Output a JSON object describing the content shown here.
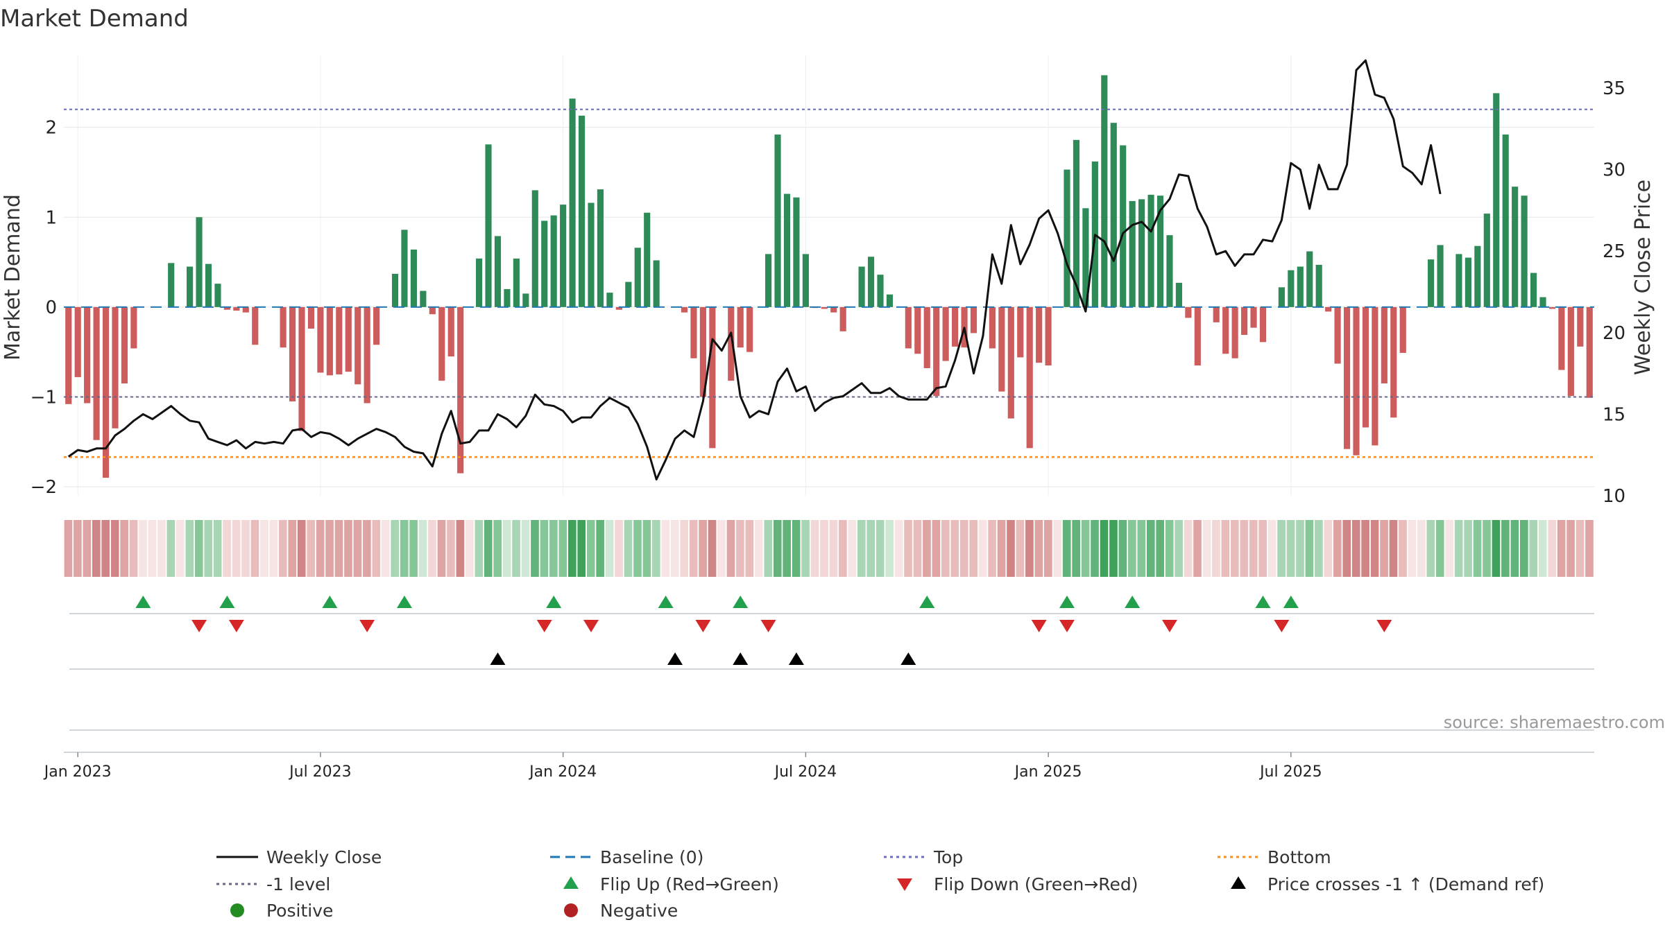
{
  "chart_data": {
    "type": "bar",
    "title": "Market Demand",
    "ylabel_left": "Market Demand",
    "ylabel_right": "Weekly Close Price",
    "ylim_left": [
      -2.1,
      2.8
    ],
    "ylim_right": [
      10,
      37
    ],
    "yticks_left": [
      2,
      1,
      0,
      -1,
      -2
    ],
    "yticks_left_labels": [
      "2",
      "1",
      "0",
      "−1",
      "−2"
    ],
    "yticks_right": [
      35,
      30,
      25,
      20,
      15,
      10
    ],
    "x_tick_labels": [
      "Jan 2023",
      "Jul 2023",
      "Jan 2024",
      "Jul 2024",
      "Jan 2025",
      "Jul 2025"
    ],
    "x_tick_weeks": [
      1,
      27,
      53,
      79,
      105,
      131
    ],
    "reference_lines": {
      "top": 2.2,
      "bottom": -1.67,
      "minus_one": -1,
      "baseline": 0
    },
    "demand": [
      -1.08,
      -0.78,
      -1.07,
      -1.48,
      -1.9,
      -1.35,
      -0.85,
      -0.46,
      0.0,
      0.0,
      0.0,
      0.49,
      0.0,
      0.45,
      1.0,
      0.48,
      0.26,
      -0.03,
      -0.04,
      -0.06,
      -0.42,
      0.0,
      0.0,
      -0.45,
      -1.05,
      -1.38,
      -0.24,
      -0.73,
      -0.76,
      -0.75,
      -0.72,
      -0.86,
      -1.07,
      -0.42,
      0.0,
      0.37,
      0.86,
      0.64,
      0.18,
      -0.08,
      -0.82,
      -0.55,
      -1.85,
      0.0,
      0.54,
      1.81,
      0.79,
      0.2,
      0.54,
      0.15,
      1.3,
      0.96,
      1.02,
      1.14,
      2.32,
      2.13,
      1.16,
      1.31,
      0.16,
      -0.03,
      0.28,
      0.66,
      1.05,
      0.52,
      0.0,
      0.0,
      -0.06,
      -0.57,
      -1.0,
      -1.57,
      0.0,
      -0.82,
      -0.45,
      -0.5,
      0.0,
      0.59,
      1.92,
      1.26,
      1.22,
      0.59,
      -0.01,
      -0.02,
      -0.06,
      -0.27,
      0.0,
      0.45,
      0.56,
      0.36,
      0.14,
      0.0,
      -0.46,
      -0.52,
      -0.68,
      -0.99,
      -0.6,
      -0.44,
      -0.45,
      -0.29,
      0.0,
      -0.46,
      -0.94,
      -1.24,
      -0.56,
      -1.57,
      -0.62,
      -0.65,
      0.0,
      1.53,
      1.86,
      1.1,
      1.62,
      2.58,
      2.05,
      1.8,
      1.18,
      1.2,
      1.25,
      1.24,
      0.8,
      0.27,
      -0.12,
      -0.65,
      0.0,
      -0.17,
      -0.52,
      -0.57,
      -0.31,
      -0.23,
      -0.39,
      0.0,
      0.22,
      0.41,
      0.45,
      0.62,
      0.47,
      -0.05,
      -0.63,
      -1.58,
      -1.65,
      -1.34,
      -1.54,
      -0.85,
      -1.23,
      -0.51,
      0.0,
      0.0,
      0.53,
      0.69,
      0.0,
      0.59,
      0.55,
      0.68,
      1.04,
      2.38,
      1.92,
      1.34,
      1.24,
      0.38,
      0.11,
      -0.02,
      -0.7,
      -0.99,
      -0.44,
      -1.01
    ],
    "weekly_close": [
      12.4,
      12.8,
      12.7,
      12.9,
      12.9,
      13.7,
      14.1,
      14.6,
      15.0,
      14.7,
      15.1,
      15.5,
      15.0,
      14.6,
      14.5,
      13.5,
      13.3,
      13.1,
      13.4,
      12.9,
      13.3,
      13.2,
      13.3,
      13.2,
      14.0,
      14.1,
      13.6,
      13.9,
      13.8,
      13.5,
      13.1,
      13.5,
      13.8,
      14.1,
      13.9,
      13.6,
      13.0,
      12.7,
      12.6,
      11.8,
      13.8,
      15.2,
      13.2,
      13.3,
      14.0,
      14.0,
      15.0,
      14.7,
      14.2,
      14.9,
      16.2,
      15.6,
      15.5,
      15.2,
      14.5,
      14.8,
      14.8,
      15.5,
      16.0,
      15.7,
      15.4,
      14.4,
      13.0,
      11.0,
      12.2,
      13.5,
      14.0,
      13.6,
      15.8,
      19.6,
      18.9,
      20.0,
      16.1,
      14.8,
      15.2,
      15.0,
      17.0,
      17.8,
      16.4,
      16.7,
      15.2,
      15.7,
      16.0,
      16.1,
      16.5,
      16.9,
      16.3,
      16.3,
      16.6,
      16.1,
      15.9,
      15.9,
      15.9,
      16.6,
      16.7,
      18.3,
      20.3,
      17.5,
      19.8,
      24.8,
      23.0,
      26.6,
      24.2,
      25.4,
      27.0,
      27.5,
      26.1,
      24.2,
      22.9,
      21.3,
      26.0,
      25.6,
      24.4,
      26.1,
      26.6,
      26.8,
      26.2,
      27.5,
      28.2,
      29.7,
      29.6,
      27.6,
      26.5,
      24.8,
      25.0,
      24.1,
      24.8,
      24.8,
      25.7,
      25.6,
      26.9,
      30.4,
      30.0,
      27.6,
      30.3,
      28.8,
      28.8,
      30.3,
      36.1,
      36.7,
      34.6,
      34.4,
      33.1,
      30.2,
      29.8,
      29.1,
      31.5,
      28.5
    ],
    "colors": {
      "positive_bar": "#2e8b57",
      "negative_bar": "#cd5c5c",
      "weekly_close": "#111111",
      "baseline": "#1f77b4",
      "top": "#6c6cc0",
      "minus_one": "#666688",
      "bottom": "#ff8c1a",
      "flip_up": "#22a04b",
      "flip_down": "#d62728",
      "price_cross": "#000000",
      "positive_dot": "#228b22",
      "negative_dot": "#b22222"
    },
    "flip_up_weeks": [
      8,
      17,
      28,
      36,
      52,
      64,
      72,
      92,
      107,
      114,
      128,
      131
    ],
    "flip_down_weeks": [
      14,
      18,
      32,
      51,
      56,
      68,
      75,
      104,
      107,
      118,
      130,
      141
    ],
    "price_cross_weeks": [
      46,
      65,
      72,
      78,
      90
    ]
  },
  "legend": {
    "weekly_close": "Weekly Close",
    "baseline": "Baseline (0)",
    "top": "Top",
    "bottom": "Bottom",
    "minus_one": "-1 level",
    "flip_up": "Flip Up (Red→Green)",
    "flip_down": "Flip Down (Green→Red)",
    "price_cross": "Price crosses -1 ↑ (Demand ref)",
    "positive": "Positive",
    "negative": "Negative"
  },
  "source": "source: sharemaestro.com"
}
